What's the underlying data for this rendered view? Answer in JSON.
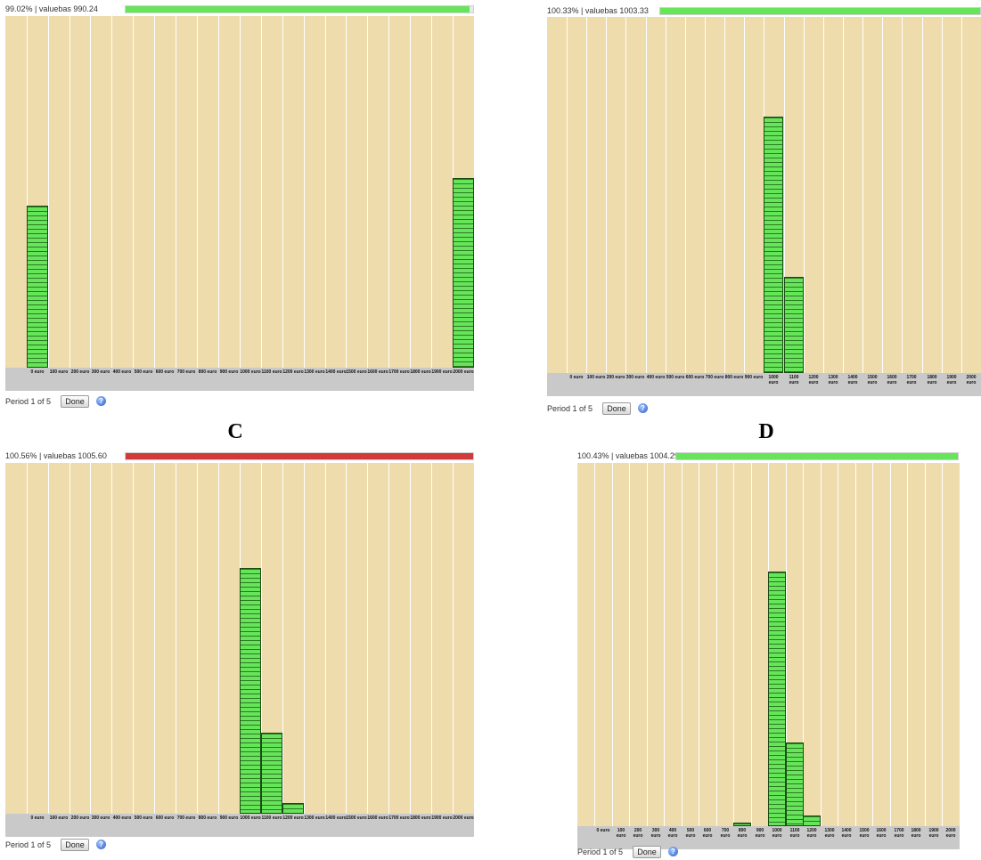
{
  "colors": {
    "plot_bg": "#efdcad",
    "bar_green": "#66e45a",
    "bar_red": "#d03a3a",
    "axis_bg": "#c9c9c9"
  },
  "icons": {
    "help": "help-icon"
  },
  "panels": [
    {
      "id": "A",
      "letter": "",
      "status_text": "99.02% | valuebas 990.24",
      "budget_bar": {
        "color": "green",
        "fill_fraction": 0.99
      },
      "period_text": "Period 1 of 5",
      "done_label": "Done",
      "help_glyph": "?",
      "chart_data": {
        "type": "bar",
        "categories": [
          "0 euro",
          "100 euro",
          "200 euro",
          "300 euro",
          "400 euro",
          "500 euro",
          "600 euro",
          "700 euro",
          "800 euro",
          "900 euro",
          "1000 euro",
          "1100 euro",
          "1200 euro",
          "1300 euro",
          "1400 euro",
          "1500 euro",
          "1600 euro",
          "1700 euro",
          "1800 euro",
          "1900 euro",
          "2000 euro"
        ],
        "values": [
          0.46,
          0,
          0,
          0,
          0,
          0,
          0,
          0,
          0,
          0,
          0,
          0,
          0,
          0,
          0,
          0,
          0,
          0,
          0,
          0,
          0.54
        ],
        "ylim": [
          0,
          1
        ]
      }
    },
    {
      "id": "B",
      "letter": "",
      "status_text": "100.33% | valuebas 1003.33",
      "budget_bar": {
        "color": "green",
        "fill_fraction": 1.0
      },
      "period_text": "Period 1 of 5",
      "done_label": "Done",
      "help_glyph": "?",
      "chart_data": {
        "type": "bar",
        "categories": [
          "0 euro",
          "100 euro",
          "200 euro",
          "300 euro",
          "400 euro",
          "500 euro",
          "600 euro",
          "700 euro",
          "800 euro",
          "900 euro",
          "1000 euro",
          "1100 euro",
          "1200 euro",
          "1300 euro",
          "1400 euro",
          "1500 euro",
          "1600 euro",
          "1700 euro",
          "1800 euro",
          "1900 euro",
          "2000 euro"
        ],
        "values": [
          0,
          0,
          0,
          0,
          0,
          0,
          0,
          0,
          0,
          0,
          0.72,
          0.27,
          0,
          0,
          0,
          0,
          0,
          0,
          0,
          0,
          0
        ],
        "ylim": [
          0,
          1
        ]
      }
    },
    {
      "id": "C",
      "letter": "C",
      "status_text": "100.56% | valuebas 1005.60",
      "budget_bar": {
        "color": "red",
        "fill_fraction": 1.0
      },
      "period_text": "Period 1 of 5",
      "done_label": "Done",
      "help_glyph": "?",
      "chart_data": {
        "type": "bar",
        "categories": [
          "0 euro",
          "100 euro",
          "200 euro",
          "300 euro",
          "400 euro",
          "500 euro",
          "600 euro",
          "700 euro",
          "800 euro",
          "900 euro",
          "1000 euro",
          "1100 euro",
          "1200 euro",
          "1300 euro",
          "1400 euro",
          "1500 euro",
          "1600 euro",
          "1700 euro",
          "1800 euro",
          "1900 euro",
          "2000 euro"
        ],
        "values": [
          0,
          0,
          0,
          0,
          0,
          0,
          0,
          0,
          0,
          0,
          0.7,
          0.23,
          0.03,
          0,
          0,
          0,
          0,
          0,
          0,
          0,
          0
        ],
        "ylim": [
          0,
          1
        ]
      }
    },
    {
      "id": "D",
      "letter": "D",
      "status_text": "100.43% | valuebas 1004.29",
      "budget_bar": {
        "color": "green",
        "fill_fraction": 1.0
      },
      "period_text": "Period 1 of 5",
      "done_label": "Done",
      "help_glyph": "?",
      "chart_data": {
        "type": "bar",
        "categories": [
          "0 euro",
          "100 euro",
          "200 euro",
          "300 euro",
          "400 euro",
          "500 euro",
          "600 euro",
          "700 euro",
          "800 euro",
          "900 euro",
          "1000 euro",
          "1100 euro",
          "1200 euro",
          "1300 euro",
          "1400 euro",
          "1500 euro",
          "1600 euro",
          "1700 euro",
          "1800 euro",
          "1900 euro",
          "2000 euro"
        ],
        "values": [
          0,
          0,
          0,
          0,
          0,
          0,
          0,
          0,
          0.01,
          0,
          0.7,
          0.23,
          0.03,
          0,
          0,
          0,
          0,
          0,
          0,
          0,
          0
        ],
        "ylim": [
          0,
          1
        ]
      }
    }
  ]
}
